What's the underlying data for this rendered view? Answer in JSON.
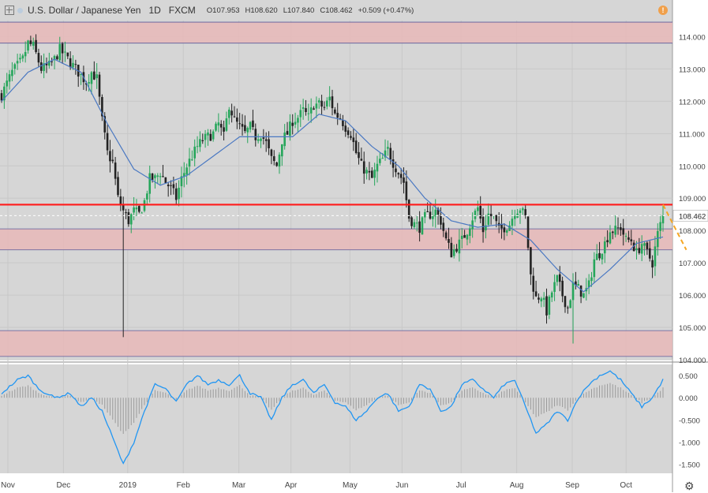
{
  "header": {
    "symbol": "U.S. Dollar / Japanese Yen",
    "timeframe": "1D",
    "source": "FXCM",
    "open": "O107.953",
    "high": "H108.620",
    "low": "L107.840",
    "close": "C108.462",
    "change": "+0.509 (+0.47%)"
  },
  "warning_badge": "!",
  "settings_icon": "gear-icon",
  "colors": {
    "up": "#26a65b",
    "down": "#222222",
    "ma": "#4a78c2",
    "zone": "#e7b8b8",
    "resistance": "#ff1a1a",
    "projection": "#f5a623",
    "oscillator": "#2196f3"
  },
  "chart_data": [
    {
      "type": "candlestick",
      "ylim": [
        104.0,
        114.5
      ],
      "y_ticks": [
        "114.000",
        "113.000",
        "112.000",
        "111.000",
        "110.000",
        "109.000",
        "108.000",
        "107.000",
        "106.000",
        "105.000",
        "104.000"
      ],
      "x_ticks": [
        "Nov",
        "Dec",
        "2019",
        "Feb",
        "Mar",
        "Apr",
        "May",
        "Jun",
        "Jul",
        "Aug",
        "Sep",
        "Oct"
      ],
      "last_price_label": "108.462",
      "last_price": 108.46,
      "resistance_level": 108.8,
      "zones": [
        {
          "from": 113.8,
          "to": 114.45
        },
        {
          "from": 107.4,
          "to": 108.05
        },
        {
          "from": 104.1,
          "to": 104.9
        }
      ],
      "projection": {
        "from": [
          250,
          108.8
        ],
        "to": [
          260,
          107.4
        ]
      },
      "path_points": [
        [
          0,
          112.2
        ],
        [
          4,
          112.9
        ],
        [
          8,
          113.3
        ],
        [
          10,
          113.8
        ],
        [
          12,
          113.7
        ],
        [
          15,
          113.0
        ],
        [
          18,
          113.1
        ],
        [
          20,
          113.3
        ],
        [
          22,
          113.6
        ],
        [
          25,
          113.3
        ],
        [
          28,
          113.0
        ],
        [
          30,
          112.8
        ],
        [
          32,
          112.6
        ],
        [
          34,
          112.9
        ],
        [
          36,
          112.7
        ],
        [
          38,
          111.4
        ],
        [
          40,
          110.4
        ],
        [
          42,
          110.1
        ],
        [
          44,
          109.0
        ],
        [
          46,
          108.6
        ],
        [
          48,
          108.3
        ],
        [
          50,
          108.6
        ],
        [
          52,
          108.5
        ],
        [
          54,
          108.9
        ],
        [
          56,
          109.6
        ],
        [
          58,
          109.6
        ],
        [
          60,
          109.8
        ],
        [
          62,
          109.5
        ],
        [
          64,
          109.3
        ],
        [
          66,
          109.0
        ],
        [
          68,
          109.6
        ],
        [
          70,
          110.0
        ],
        [
          72,
          110.3
        ],
        [
          74,
          110.6
        ],
        [
          76,
          110.8
        ],
        [
          78,
          110.9
        ],
        [
          80,
          111.0
        ],
        [
          82,
          111.3
        ],
        [
          84,
          110.9
        ],
        [
          86,
          111.9
        ],
        [
          88,
          111.4
        ],
        [
          90,
          111.2
        ],
        [
          92,
          111.0
        ],
        [
          94,
          111.2
        ],
        [
          96,
          110.9
        ],
        [
          98,
          111.0
        ],
        [
          100,
          110.7
        ],
        [
          102,
          110.2
        ],
        [
          104,
          110.0
        ],
        [
          106,
          110.8
        ],
        [
          108,
          111.0
        ],
        [
          110,
          111.4
        ],
        [
          112,
          111.5
        ],
        [
          114,
          111.7
        ],
        [
          116,
          111.5
        ],
        [
          118,
          111.9
        ],
        [
          120,
          111.9
        ],
        [
          122,
          111.8
        ],
        [
          124,
          112.1
        ],
        [
          126,
          111.6
        ],
        [
          128,
          111.5
        ],
        [
          130,
          111.2
        ],
        [
          132,
          111.0
        ],
        [
          134,
          110.4
        ],
        [
          136,
          110.0
        ],
        [
          138,
          109.8
        ],
        [
          140,
          109.6
        ],
        [
          142,
          110.0
        ],
        [
          144,
          110.2
        ],
        [
          146,
          110.5
        ],
        [
          148,
          110.1
        ],
        [
          150,
          109.8
        ],
        [
          152,
          109.5
        ],
        [
          154,
          108.4
        ],
        [
          156,
          108.2
        ],
        [
          158,
          108.1
        ],
        [
          160,
          108.4
        ],
        [
          162,
          108.5
        ],
        [
          164,
          108.6
        ],
        [
          166,
          108.3
        ],
        [
          168,
          107.7
        ],
        [
          170,
          107.3
        ],
        [
          172,
          107.5
        ],
        [
          174,
          107.7
        ],
        [
          176,
          108.0
        ],
        [
          178,
          108.4
        ],
        [
          180,
          108.7
        ],
        [
          182,
          108.0
        ],
        [
          184,
          108.5
        ],
        [
          186,
          108.4
        ],
        [
          188,
          108.0
        ],
        [
          190,
          108.1
        ],
        [
          192,
          108.2
        ],
        [
          194,
          108.6
        ],
        [
          196,
          108.7
        ],
        [
          198,
          108.4
        ],
        [
          200,
          106.6
        ],
        [
          202,
          105.9
        ],
        [
          204,
          106.0
        ],
        [
          206,
          105.5
        ],
        [
          208,
          106.1
        ],
        [
          210,
          106.5
        ],
        [
          212,
          106.0
        ],
        [
          214,
          105.6
        ],
        [
          216,
          106.3
        ],
        [
          218,
          106.2
        ],
        [
          220,
          106.0
        ],
        [
          222,
          106.3
        ],
        [
          224,
          107.1
        ],
        [
          226,
          107.3
        ],
        [
          228,
          107.6
        ],
        [
          230,
          108.0
        ],
        [
          232,
          108.0
        ],
        [
          234,
          108.1
        ],
        [
          236,
          107.7
        ],
        [
          238,
          107.7
        ],
        [
          240,
          107.3
        ],
        [
          242,
          107.6
        ],
        [
          244,
          107.3
        ],
        [
          246,
          107.0
        ],
        [
          248,
          107.9
        ],
        [
          250,
          108.46
        ]
      ],
      "moving_average_anchors": [
        [
          0,
          112.0
        ],
        [
          10,
          112.9
        ],
        [
          20,
          113.3
        ],
        [
          30,
          112.9
        ],
        [
          40,
          111.3
        ],
        [
          50,
          109.9
        ],
        [
          60,
          109.4
        ],
        [
          70,
          109.7
        ],
        [
          80,
          110.3
        ],
        [
          90,
          110.9
        ],
        [
          100,
          110.9
        ],
        [
          110,
          110.9
        ],
        [
          120,
          111.6
        ],
        [
          130,
          111.4
        ],
        [
          140,
          110.6
        ],
        [
          150,
          110.0
        ],
        [
          160,
          109.0
        ],
        [
          170,
          108.3
        ],
        [
          180,
          108.1
        ],
        [
          190,
          108.2
        ],
        [
          200,
          107.7
        ],
        [
          210,
          106.8
        ],
        [
          220,
          106.1
        ],
        [
          230,
          106.8
        ],
        [
          240,
          107.6
        ],
        [
          250,
          107.8
        ]
      ]
    },
    {
      "type": "line",
      "name": "",
      "ylim": [
        -1.7,
        0.75
      ],
      "y_ticks": [
        "0.500",
        "0.000",
        "-0.500",
        "-1.000",
        "-1.500"
      ],
      "series": [
        {
          "name": "",
          "anchors": [
            [
              0,
              0.1
            ],
            [
              6,
              0.4
            ],
            [
              10,
              0.5
            ],
            [
              14,
              0.2
            ],
            [
              20,
              0.0
            ],
            [
              26,
              0.1
            ],
            [
              30,
              -0.2
            ],
            [
              34,
              0.0
            ],
            [
              38,
              -0.3
            ],
            [
              42,
              -0.9
            ],
            [
              46,
              -1.5
            ],
            [
              50,
              -1.0
            ],
            [
              54,
              -0.3
            ],
            [
              58,
              0.3
            ],
            [
              62,
              0.2
            ],
            [
              66,
              -0.1
            ],
            [
              70,
              0.3
            ],
            [
              74,
              0.5
            ],
            [
              78,
              0.3
            ],
            [
              82,
              0.4
            ],
            [
              86,
              0.3
            ],
            [
              90,
              0.5
            ],
            [
              94,
              0.1
            ],
            [
              98,
              0.0
            ],
            [
              102,
              -0.5
            ],
            [
              106,
              0.0
            ],
            [
              110,
              0.3
            ],
            [
              114,
              0.4
            ],
            [
              118,
              0.1
            ],
            [
              122,
              0.3
            ],
            [
              126,
              -0.1
            ],
            [
              130,
              -0.2
            ],
            [
              134,
              -0.5
            ],
            [
              138,
              -0.3
            ],
            [
              142,
              0.0
            ],
            [
              146,
              0.1
            ],
            [
              150,
              -0.3
            ],
            [
              154,
              -0.2
            ],
            [
              158,
              0.3
            ],
            [
              162,
              0.2
            ],
            [
              166,
              -0.3
            ],
            [
              170,
              -0.2
            ],
            [
              174,
              0.3
            ],
            [
              178,
              0.4
            ],
            [
              182,
              0.2
            ],
            [
              186,
              0.0
            ],
            [
              190,
              0.3
            ],
            [
              194,
              0.4
            ],
            [
              198,
              -0.2
            ],
            [
              202,
              -0.8
            ],
            [
              206,
              -0.6
            ],
            [
              210,
              -0.3
            ],
            [
              214,
              -0.5
            ],
            [
              218,
              0.0
            ],
            [
              222,
              0.3
            ],
            [
              226,
              0.5
            ],
            [
              230,
              0.6
            ],
            [
              234,
              0.4
            ],
            [
              238,
              0.1
            ],
            [
              242,
              -0.2
            ],
            [
              246,
              0.0
            ],
            [
              250,
              0.4
            ]
          ]
        }
      ]
    }
  ]
}
